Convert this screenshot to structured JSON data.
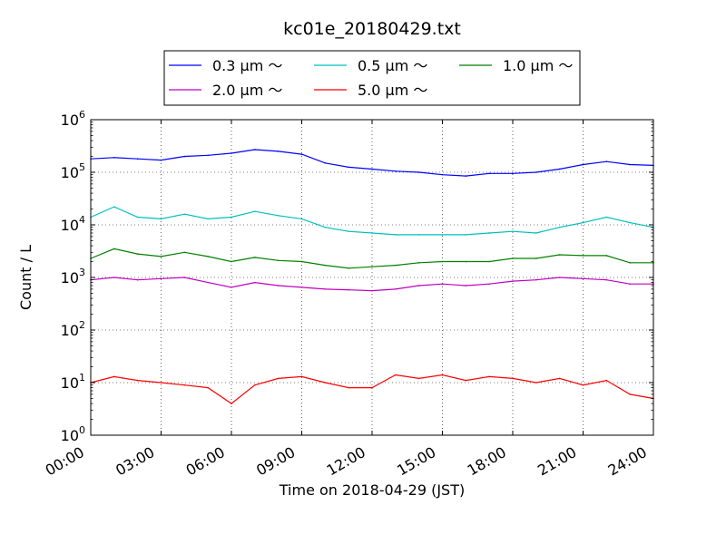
{
  "chart_data": {
    "type": "line",
    "title": "kc01e_20180429.txt",
    "xlabel": "Time on 2018-04-29 (JST)",
    "ylabel": "Count / L",
    "y_scale": "log",
    "ylim": [
      1,
      1000000
    ],
    "xlim": [
      "00:00",
      "24:00"
    ],
    "x_tick_labels": [
      "00:00",
      "03:00",
      "06:00",
      "09:00",
      "12:00",
      "15:00",
      "18:00",
      "21:00",
      "24:00"
    ],
    "y_tick_labels": [
      {
        "base": "10",
        "exp": "0"
      },
      {
        "base": "10",
        "exp": "1"
      },
      {
        "base": "10",
        "exp": "2"
      },
      {
        "base": "10",
        "exp": "3"
      },
      {
        "base": "10",
        "exp": "4"
      },
      {
        "base": "10",
        "exp": "5"
      },
      {
        "base": "10",
        "exp": "6"
      }
    ],
    "grid": true,
    "legend_position": "top-center, outside plot",
    "x_hours": [
      0,
      1,
      2,
      3,
      4,
      5,
      6,
      7,
      8,
      9,
      10,
      11,
      12,
      13,
      14,
      15,
      16,
      17,
      18,
      19,
      20,
      21,
      22,
      23,
      24
    ],
    "series": [
      {
        "name": "0.3 μm ～",
        "color": "#0000ff",
        "values": [
          180000,
          190000,
          180000,
          170000,
          200000,
          210000,
          230000,
          270000,
          250000,
          220000,
          150000,
          125000,
          115000,
          105000,
          100000,
          90000,
          85000,
          95000,
          95000,
          100000,
          115000,
          140000,
          160000,
          140000,
          135000
        ]
      },
      {
        "name": "0.5 μm ～",
        "color": "#00bfbf",
        "values": [
          14000,
          22000,
          14000,
          13000,
          16000,
          13000,
          14000,
          18000,
          15000,
          13000,
          9000,
          7500,
          7000,
          6500,
          6500,
          6500,
          6500,
          7000,
          7500,
          7000,
          9000,
          11000,
          14000,
          11000,
          9000
        ]
      },
      {
        "name": "1.0 μm ～",
        "color": "#008000",
        "values": [
          2300,
          3500,
          2800,
          2500,
          3000,
          2500,
          2000,
          2400,
          2100,
          2000,
          1700,
          1500,
          1600,
          1700,
          1900,
          2000,
          2000,
          2000,
          2300,
          2300,
          2700,
          2600,
          2600,
          1900,
          1900
        ]
      },
      {
        "name": "2.0 μm ～",
        "color": "#bf00bf",
        "values": [
          900,
          1000,
          900,
          950,
          1000,
          800,
          650,
          800,
          700,
          650,
          600,
          580,
          560,
          600,
          700,
          750,
          700,
          750,
          850,
          900,
          1000,
          950,
          900,
          750,
          750
        ]
      },
      {
        "name": "5.0 μm ～",
        "color": "#ff0000",
        "values": [
          10,
          13,
          11,
          10,
          9,
          8,
          4,
          9,
          12,
          13,
          10,
          8,
          8,
          14,
          12,
          14,
          11,
          13,
          12,
          10,
          12,
          9,
          11,
          6,
          5
        ]
      }
    ]
  }
}
